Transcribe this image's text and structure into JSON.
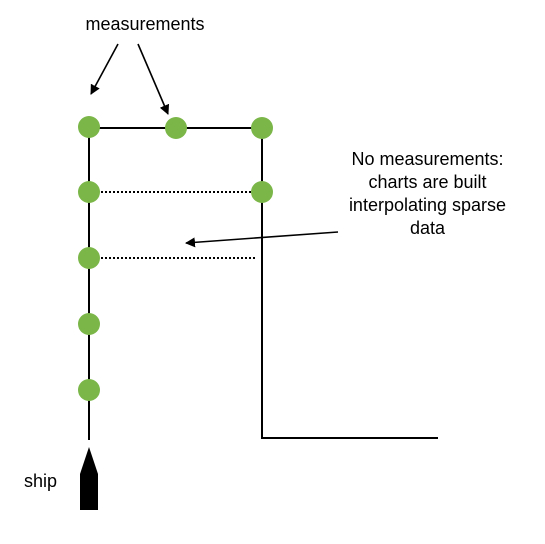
{
  "labels": {
    "measurements": "measurements",
    "no_measurements_lines": [
      "No measurements:",
      "charts are built",
      "interpolating sparse",
      "data"
    ],
    "ship": "ship"
  },
  "colors": {
    "measurement_dot": "#7ab648",
    "line": "#000000",
    "background": "#ffffff"
  }
}
